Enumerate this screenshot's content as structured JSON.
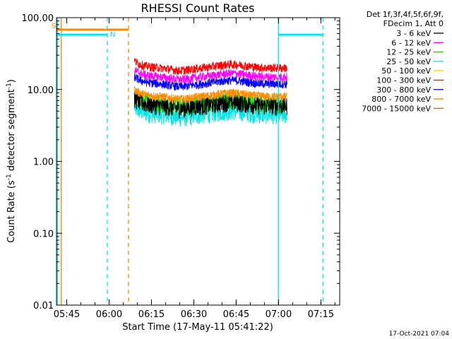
{
  "chart_data": {
    "type": "line",
    "title": "RHESSI Count Rates",
    "xlabel": "Start Time (17-May-11 05:41:22)",
    "ylabel_pre": "Count Rate (s",
    "ylabel_sup": "-1",
    "ylabel_mid": " detector segment",
    "ylabel_sup2": "-1",
    "ylabel_post": ")",
    "x_axis": {
      "unit": "minutes since 05:41:22",
      "range": [
        0.0,
        100.3
      ]
    },
    "y_axis": {
      "scale": "log",
      "range": [
        0.01,
        100.0
      ]
    },
    "y_ticks": [
      {
        "value": 100,
        "label": "100.00"
      },
      {
        "value": 10,
        "label": "10.00"
      },
      {
        "value": 1,
        "label": "1.00"
      },
      {
        "value": 0.1,
        "label": "0.10"
      },
      {
        "value": 0.01,
        "label": "0.01"
      }
    ],
    "x_ticks": [
      {
        "value": 3.63,
        "label": "05:45"
      },
      {
        "value": 18.63,
        "label": "06:00"
      },
      {
        "value": 33.63,
        "label": "06:15"
      },
      {
        "value": 48.63,
        "label": "06:30"
      },
      {
        "value": 63.63,
        "label": "06:45"
      },
      {
        "value": 78.63,
        "label": "07:00"
      },
      {
        "value": 93.63,
        "label": "07:15"
      }
    ],
    "legend_header": [
      "Det 1f,3f,4f,5f,6f,9f,",
      "FDecim 1, Att 0"
    ],
    "series": [
      {
        "name": "3 - 6 keV",
        "color": "#000000",
        "level": 6.0
      },
      {
        "name": "6 - 12 keV",
        "color": "#ff00ff",
        "level": 15.0
      },
      {
        "name": "12 - 25 keV",
        "color": "#00e000",
        "level": 6.5
      },
      {
        "name": "25 - 50 keV",
        "color": "#00e5e5",
        "level": 4.5
      },
      {
        "name": "50 - 100 keV",
        "color": "#ffd200",
        "level": null
      },
      {
        "name": "100 - 300 keV",
        "color": "#ff0000",
        "level": 20.0
      },
      {
        "name": "300 - 800 keV",
        "color": "#0000ff",
        "level": 12.0
      },
      {
        "name": "800 - 7000 keV",
        "color": "#ff8c00",
        "level": 8.0
      },
      {
        "name": "7000 - 15000 keV",
        "color": "#a07800",
        "level": null
      }
    ],
    "data_interval": {
      "start": 27.6,
      "end": 81.6
    },
    "markers": [
      {
        "label": "S",
        "color": "#ff8c00",
        "level": 68.0,
        "start": 0.0,
        "end": 25.5
      },
      {
        "label": "N",
        "color": "#00e5e5",
        "level": 58.0,
        "start": 0.0,
        "end": 18.0
      },
      {
        "label": "",
        "color": "#00e5e5",
        "level": 58.0,
        "start": 78.6,
        "end": 94.4
      }
    ],
    "vlines": [
      {
        "x": 0.35,
        "color": "#00e5e5",
        "style": "solid"
      },
      {
        "x": 1.65,
        "color": "#ff8c00",
        "style": "solid"
      },
      {
        "x": 18.0,
        "color": "#00e5e5",
        "style": "dashed"
      },
      {
        "x": 25.5,
        "color": "#ff8c00",
        "style": "dashed"
      },
      {
        "x": 78.6,
        "color": "#00e5e5",
        "style": "solid"
      },
      {
        "x": 94.4,
        "color": "#00e5e5",
        "style": "dashed"
      }
    ],
    "grid": false,
    "legend_position": "right"
  },
  "footer": {
    "timestamp": "17-Oct-2021 07:04"
  }
}
